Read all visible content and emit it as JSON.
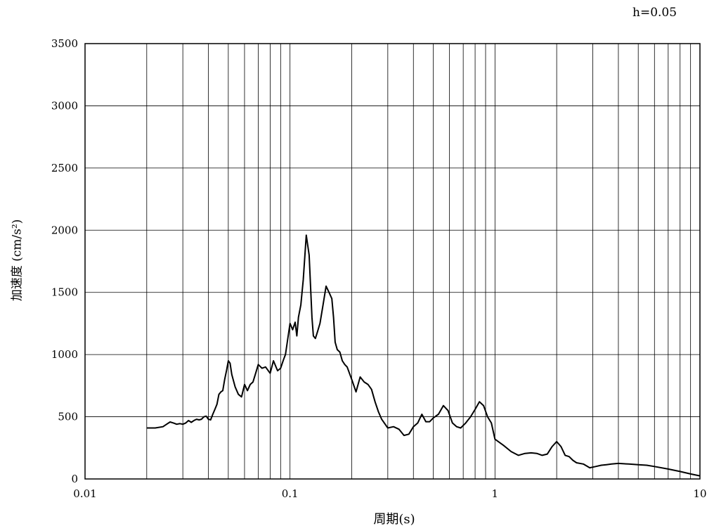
{
  "damping_label": "h=0.05",
  "chart_data": {
    "type": "line",
    "title": "",
    "xlabel": "周期(s)",
    "ylabel": "加速度 (cm/s²)",
    "xscale": "log",
    "xlim": [
      0.01,
      10
    ],
    "ylim": [
      0,
      3500
    ],
    "grid": true,
    "x_tick_labels": [
      "0.01",
      "0.1",
      "1",
      "10"
    ],
    "y_tick_labels": [
      "0",
      "500",
      "1000",
      "1500",
      "2000",
      "2500",
      "3000",
      "3500"
    ],
    "series": [
      {
        "x": [
          0.02,
          0.022,
          0.024,
          0.025,
          0.026,
          0.027,
          0.028,
          0.029,
          0.03,
          0.031,
          0.032,
          0.033,
          0.034,
          0.035,
          0.036,
          0.037,
          0.038,
          0.039,
          0.04,
          0.041,
          0.042,
          0.043,
          0.044,
          0.045,
          0.046,
          0.047,
          0.048,
          0.049,
          0.05,
          0.051,
          0.052,
          0.053,
          0.054,
          0.056,
          0.058,
          0.06,
          0.062,
          0.064,
          0.066,
          0.068,
          0.07,
          0.073,
          0.076,
          0.08,
          0.083,
          0.087,
          0.09,
          0.093,
          0.095,
          0.1,
          0.103,
          0.106,
          0.108,
          0.11,
          0.113,
          0.116,
          0.12,
          0.124,
          0.128,
          0.13,
          0.133,
          0.136,
          0.14,
          0.145,
          0.15,
          0.155,
          0.16,
          0.163,
          0.166,
          0.17,
          0.175,
          0.18,
          0.185,
          0.19,
          0.2,
          0.21,
          0.22,
          0.23,
          0.24,
          0.25,
          0.26,
          0.27,
          0.28,
          0.3,
          0.32,
          0.34,
          0.36,
          0.38,
          0.4,
          0.42,
          0.44,
          0.46,
          0.48,
          0.5,
          0.53,
          0.56,
          0.59,
          0.62,
          0.65,
          0.68,
          0.72,
          0.76,
          0.8,
          0.84,
          0.88,
          0.92,
          0.96,
          1.0,
          1.1,
          1.2,
          1.3,
          1.4,
          1.5,
          1.6,
          1.7,
          1.8,
          1.9,
          2.0,
          2.1,
          2.2,
          2.3,
          2.4,
          2.5,
          2.7,
          2.9,
          3.1,
          3.3,
          3.5,
          3.7,
          4.0,
          4.5,
          5.0,
          5.5,
          6.0,
          7.0,
          8.0,
          9.0,
          10.0
        ],
        "y": [
          410,
          410,
          420,
          440,
          458,
          450,
          440,
          445,
          440,
          450,
          470,
          455,
          470,
          480,
          475,
          480,
          500,
          505,
          480,
          475,
          520,
          560,
          600,
          680,
          700,
          710,
          800,
          870,
          950,
          930,
          840,
          790,
          740,
          680,
          660,
          760,
          710,
          760,
          780,
          850,
          920,
          890,
          900,
          850,
          950,
          870,
          890,
          960,
          1000,
          1250,
          1200,
          1260,
          1150,
          1300,
          1400,
          1600,
          1960,
          1800,
          1300,
          1150,
          1130,
          1180,
          1250,
          1400,
          1550,
          1500,
          1450,
          1300,
          1100,
          1040,
          1020,
          950,
          920,
          900,
          800,
          700,
          820,
          780,
          760,
          720,
          620,
          540,
          480,
          410,
          420,
          400,
          350,
          360,
          420,
          450,
          520,
          460,
          460,
          490,
          520,
          590,
          550,
          450,
          420,
          410,
          450,
          500,
          560,
          620,
          590,
          500,
          450,
          320,
          270,
          220,
          190,
          205,
          210,
          205,
          190,
          200,
          260,
          300,
          260,
          190,
          180,
          150,
          130,
          120,
          90,
          100,
          110,
          115,
          120,
          125,
          120,
          115,
          110,
          100,
          80,
          60,
          40,
          25
        ]
      }
    ]
  }
}
